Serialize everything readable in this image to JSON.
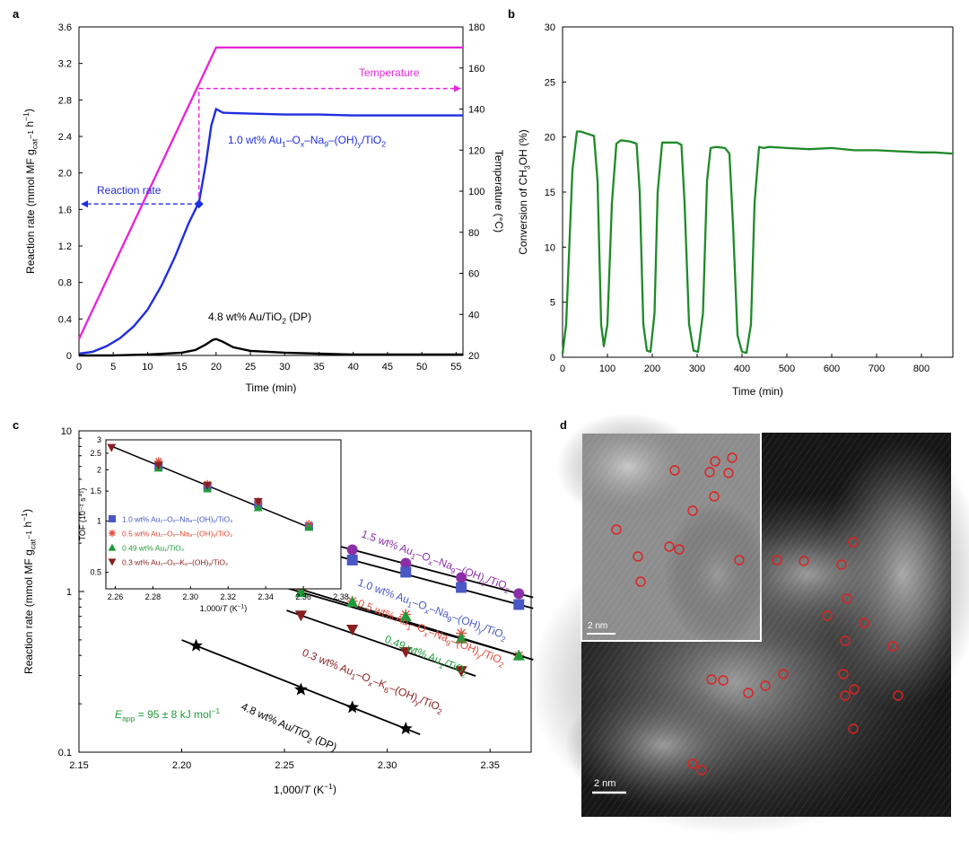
{
  "panel_letters": {
    "a": "a",
    "b": "b",
    "c": "c",
    "d": "d"
  },
  "chart_data": [
    {
      "panel": "a",
      "type": "line",
      "xlabel": "Time (min)",
      "ylabel": "Reaction rate (mmol MF g",
      "ylabel_sub": "cat",
      "ylabel_sup": "−1",
      "ylabel_tail": " h",
      "ylabel_end": ")",
      "y2label": "Temperature (°C)",
      "xlim": [
        0,
        56
      ],
      "ylim": [
        0,
        3.6
      ],
      "y2lim": [
        20,
        180
      ],
      "xticks": [
        "0",
        "5",
        "10",
        "15",
        "20",
        "25",
        "30",
        "35",
        "40",
        "45",
        "50",
        "55"
      ],
      "yticks": [
        "0",
        "0.4",
        "0.8",
        "1.2",
        "1.6",
        "2.0",
        "2.4",
        "2.8",
        "3.2",
        "3.6"
      ],
      "y2ticks": [
        "20",
        "40",
        "60",
        "80",
        "100",
        "120",
        "140",
        "160",
        "180"
      ],
      "series": [
        {
          "name": "Temperature",
          "color": "#e628d6",
          "axis": "right",
          "x": [
            0,
            20,
            56
          ],
          "y": [
            28,
            170,
            170
          ]
        },
        {
          "name": "1.0 wt% Au₁–Oₓ–Na₉–(OH)ᵧ/TiO₂",
          "color": "#1f2ee0",
          "axis": "left",
          "x": [
            0,
            2,
            4,
            6,
            8,
            10,
            12,
            14,
            16,
            17.5,
            18.5,
            19.3,
            20,
            21,
            25,
            30,
            35,
            40,
            45,
            50,
            56
          ],
          "y": [
            0.02,
            0.04,
            0.1,
            0.19,
            0.32,
            0.5,
            0.76,
            1.08,
            1.45,
            1.68,
            2.1,
            2.52,
            2.7,
            2.66,
            2.65,
            2.64,
            2.64,
            2.63,
            2.63,
            2.63,
            2.63
          ]
        },
        {
          "name": "4.8 wt% Au/TiO₂ (DP)",
          "color": "#000000",
          "axis": "left",
          "x": [
            0,
            5,
            10,
            15,
            17,
            18.5,
            19.5,
            20,
            21,
            22.5,
            25,
            30,
            35,
            40,
            45,
            50,
            56
          ],
          "y": [
            0.0,
            0.0,
            0.01,
            0.03,
            0.06,
            0.12,
            0.17,
            0.18,
            0.15,
            0.09,
            0.05,
            0.03,
            0.02,
            0.01,
            0.01,
            0.01,
            0.01
          ]
        }
      ],
      "annotations": {
        "temperature": "Temperature",
        "rate": "Reaction rate",
        "label_blue": "1.0 wt% Au",
        "label_black": "4.8 wt% Au/TiO",
        "label_black_tail": " (DP)",
        "marker_x": 17.5,
        "marker_y": 1.66
      }
    },
    {
      "panel": "b",
      "type": "line",
      "xlabel": "Time (min)",
      "ylabel": "Conversion of CH",
      "ylabel_sub": "3",
      "ylabel_tail": "OH (%)",
      "xlim": [
        0,
        870
      ],
      "ylim": [
        0,
        30
      ],
      "xticks": [
        "0",
        "100",
        "200",
        "300",
        "400",
        "500",
        "600",
        "700",
        "800"
      ],
      "yticks": [
        "0",
        "5",
        "10",
        "15",
        "20",
        "25",
        "30"
      ],
      "series": [
        {
          "color": "#1f8a2a",
          "x": [
            0,
            8,
            22,
            32,
            40,
            55,
            70,
            78,
            86,
            92,
            100,
            110,
            120,
            130,
            150,
            165,
            172,
            180,
            188,
            196,
            205,
            212,
            222,
            232,
            255,
            265,
            272,
            282,
            292,
            302,
            313,
            322,
            330,
            342,
            362,
            372,
            380,
            390,
            400,
            410,
            420,
            428,
            438,
            448,
            460,
            500,
            550,
            600,
            650,
            700,
            750,
            800,
            830,
            870
          ],
          "y": [
            0.3,
            3,
            17,
            20.5,
            20.5,
            20.3,
            20.1,
            16,
            3,
            1,
            3,
            14,
            19.4,
            19.7,
            19.6,
            19.4,
            15,
            3,
            0.6,
            0.5,
            4,
            15,
            19.5,
            19.5,
            19.5,
            19.3,
            14,
            3,
            0.6,
            0.5,
            4,
            16,
            19,
            19.1,
            19,
            18.5,
            12,
            2,
            0.5,
            0.4,
            3,
            14,
            19.1,
            19,
            19.1,
            19.0,
            18.9,
            19.0,
            18.8,
            18.8,
            18.7,
            18.6,
            18.6,
            18.5
          ]
        }
      ]
    },
    {
      "panel": "c",
      "type": "scatter",
      "xlabel": "1,000/T (K⁻¹)",
      "ylabel": "Reaction rate (mmol MF g",
      "xlim": [
        2.15,
        2.37
      ],
      "ylim": [
        0.1,
        10
      ],
      "yscale": "log",
      "xticks": [
        "2.15",
        "2.20",
        "2.25",
        "2.30",
        "2.35"
      ],
      "yticks": [
        "0.1",
        "1",
        "10"
      ],
      "series": [
        {
          "name": "1.5 wt% Au₁–Oₓ–Na₉–(OH)ᵧ/TiO₂",
          "color": "#8a2fa8",
          "marker": "circle",
          "x": [
            2.283,
            2.309,
            2.336,
            2.364
          ],
          "y": [
            1.82,
            1.5,
            1.22,
            0.97
          ]
        },
        {
          "name": "1.0 wt% Au₁–Oₓ–Na₉–(OH)ᵧ/TiO₂",
          "color": "#4958c4",
          "marker": "square",
          "x": [
            2.283,
            2.309,
            2.336,
            2.364
          ],
          "y": [
            1.57,
            1.32,
            1.06,
            0.83
          ]
        },
        {
          "name": "0.5 wt% Au₁–Oₓ–Na₉–(OH)ᵧ/TiO₂",
          "color": "#e04a3a",
          "marker": "asterisk",
          "x": [
            2.258,
            2.283,
            2.309,
            2.336,
            2.364
          ],
          "y": [
            1.03,
            0.87,
            0.72,
            0.55,
            0.4
          ]
        },
        {
          "name": "0.49 wt% Au₁/TiO₂",
          "color": "#1f9a3a",
          "marker": "triangle",
          "x": [
            2.258,
            2.283,
            2.309,
            2.336,
            2.364
          ],
          "y": [
            0.99,
            0.86,
            0.7,
            0.51,
            0.4
          ]
        },
        {
          "name": "0.3 wt% Au₁–Oₓ–K₆–(OH)ᵧ/TiO₂",
          "color": "#8a1f1f",
          "marker": "tri-down",
          "x": [
            2.258,
            2.283,
            2.309,
            2.336
          ],
          "y": [
            0.71,
            0.58,
            0.42,
            0.32
          ]
        },
        {
          "name": "4.8 wt% Au/TiO₂ (DP)",
          "color": "#000000",
          "marker": "star",
          "x": [
            2.207,
            2.258,
            2.283,
            2.309
          ],
          "y": [
            0.46,
            0.245,
            0.19,
            0.14
          ]
        }
      ],
      "inset": {
        "xlabel": "1,000/T (K⁻¹)",
        "ylabel": "TOF (10⁻² s⁻¹)",
        "xlim": [
          2.255,
          2.38
        ],
        "ylim": [
          0.4,
          3.0
        ],
        "yscale": "log",
        "xticks": [
          "2.26",
          "2.28",
          "2.30",
          "2.32",
          "2.34",
          "2.36",
          "2.38"
        ],
        "yticks": [
          "0.5",
          "1",
          "1.5",
          "2",
          "2.5",
          "3"
        ],
        "points": [
          {
            "marker": "tri-down",
            "color": "#8a1f1f",
            "x": 2.258,
            "y": 2.7
          },
          {
            "marker": "square",
            "color": "#4958c4",
            "x": 2.283,
            "y": 2.1
          },
          {
            "marker": "asterisk",
            "color": "#e04a3a",
            "x": 2.283,
            "y": 2.25
          },
          {
            "marker": "triangle",
            "color": "#1f9a3a",
            "x": 2.283,
            "y": 2.05
          },
          {
            "marker": "tri-down",
            "color": "#8a1f1f",
            "x": 2.283,
            "y": 2.12
          },
          {
            "marker": "square",
            "color": "#4958c4",
            "x": 2.309,
            "y": 1.6
          },
          {
            "marker": "asterisk",
            "color": "#e04a3a",
            "x": 2.309,
            "y": 1.65
          },
          {
            "marker": "triangle",
            "color": "#1f9a3a",
            "x": 2.309,
            "y": 1.55
          },
          {
            "marker": "tri-down",
            "color": "#8a1f1f",
            "x": 2.309,
            "y": 1.62
          },
          {
            "marker": "square",
            "color": "#4958c4",
            "x": 2.336,
            "y": 1.25
          },
          {
            "marker": "asterisk",
            "color": "#e04a3a",
            "x": 2.336,
            "y": 1.3
          },
          {
            "marker": "triangle",
            "color": "#1f9a3a",
            "x": 2.336,
            "y": 1.2
          },
          {
            "marker": "tri-down",
            "color": "#8a1f1f",
            "x": 2.336,
            "y": 1.3
          },
          {
            "marker": "square",
            "color": "#4958c4",
            "x": 2.363,
            "y": 0.93
          },
          {
            "marker": "asterisk",
            "color": "#e04a3a",
            "x": 2.363,
            "y": 0.96
          },
          {
            "marker": "triangle",
            "color": "#1f9a3a",
            "x": 2.363,
            "y": 0.92
          }
        ],
        "fit": {
          "x": [
            2.257,
            2.365
          ],
          "y": [
            2.78,
            0.9
          ]
        },
        "legend": [
          {
            "marker": "square",
            "color": "#4958c4",
            "text": "1.0 wt% Au₁–Oₓ–Na₉–(OH)ᵧ/TiO₂"
          },
          {
            "marker": "asterisk",
            "color": "#e04a3a",
            "text": "0.5 wt% Au₁–Oₓ–Na₉–(OH)ᵧ/TiO₂"
          },
          {
            "marker": "triangle",
            "color": "#1f9a3a",
            "text": "0.49 wt% Au₁/TiO₂"
          },
          {
            "marker": "tri-down",
            "color": "#8a1f1f",
            "text": "0.3 wt% Au₁–Oₓ–K₆–(OH)ᵧ/TiO₂"
          }
        ]
      },
      "eapp_text": "E",
      "eapp_sub": "app",
      "eapp_tail": " = 95 ± 8 kJ mol",
      "eapp_sup": "−1"
    }
  ],
  "panel_d": {
    "scalebar_main": "2 nm",
    "scalebar_inset": "2 nm",
    "circle_color": "#e02020"
  }
}
